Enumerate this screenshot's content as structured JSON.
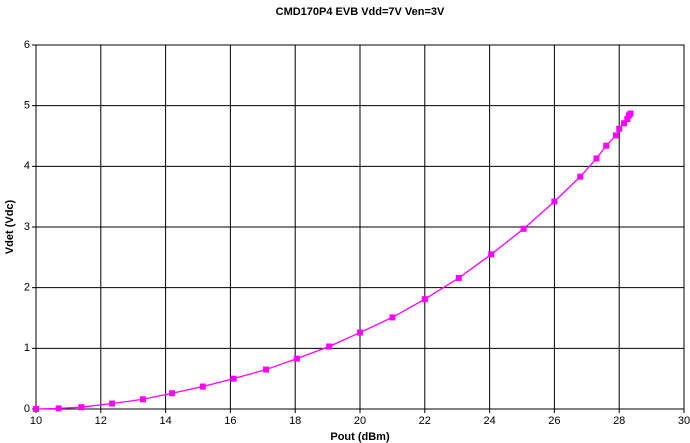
{
  "chart_data": {
    "type": "line",
    "title": "CMD170P4 EVB Vdd=7V Ven=3V",
    "x_label": "Pout (dBm)",
    "y_label": "Vdet (Vdc)",
    "x": [
      10.0,
      10.7,
      11.4,
      12.35,
      13.3,
      14.2,
      15.15,
      16.1,
      17.1,
      18.05,
      19.05,
      20.0,
      21.0,
      22.0,
      23.05,
      24.05,
      25.05,
      26.0,
      26.8,
      27.3,
      27.6,
      27.9,
      28.0,
      28.15,
      28.25,
      28.3,
      28.35
    ],
    "series": [
      {
        "name": "Vdet",
        "color": "#ff00ff",
        "values": [
          0.0,
          0.01,
          0.03,
          0.09,
          0.16,
          0.26,
          0.37,
          0.5,
          0.65,
          0.83,
          1.03,
          1.26,
          1.51,
          1.81,
          2.16,
          2.55,
          2.97,
          3.42,
          3.83,
          4.13,
          4.34,
          4.51,
          4.62,
          4.71,
          4.78,
          4.84,
          4.87
        ]
      }
    ],
    "xlim": [
      10,
      30
    ],
    "xticks": [
      10,
      12,
      14,
      16,
      18,
      20,
      22,
      24,
      26,
      28,
      30
    ],
    "ylim": [
      0,
      6
    ],
    "yticks": [
      0,
      1,
      2,
      3,
      4,
      5,
      6
    ],
    "grid": true
  }
}
